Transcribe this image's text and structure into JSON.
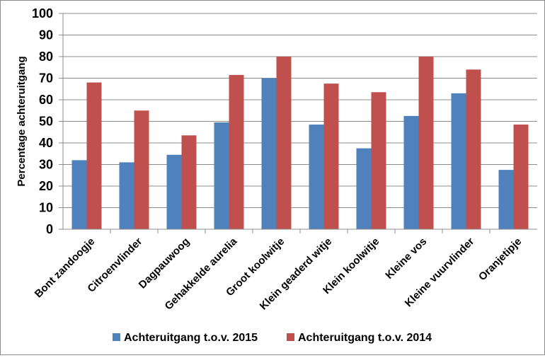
{
  "chart_data": {
    "type": "bar",
    "title": "",
    "xlabel": "",
    "ylabel": "Percentage achteruitgang",
    "ylim": [
      0,
      100
    ],
    "yticks": [
      0,
      10,
      20,
      30,
      40,
      50,
      60,
      70,
      80,
      90,
      100
    ],
    "grid": true,
    "legend_position": "bottom",
    "categories": [
      "Bont zandoogje",
      "Citroenvlinder",
      "Dagpauwoog",
      "Gehakkelde aurelia",
      "Groot koolwitje",
      "Klein geaderd witje",
      "Klein koolwitje",
      "Kleine vos",
      "Kleine vuurvlinder",
      "Oranjetipje"
    ],
    "series": [
      {
        "name": "Achteruitgang t.o.v. 2015",
        "color": "#4f81bd",
        "values": [
          32,
          31,
          34.5,
          49.5,
          70,
          48.5,
          37.5,
          52.5,
          63,
          27.5
        ]
      },
      {
        "name": "Achteruitgang t.o.v. 2014",
        "color": "#c0504d",
        "values": [
          68,
          55,
          43.5,
          71.5,
          80,
          67.5,
          63.5,
          80,
          74,
          48.5
        ]
      }
    ]
  }
}
